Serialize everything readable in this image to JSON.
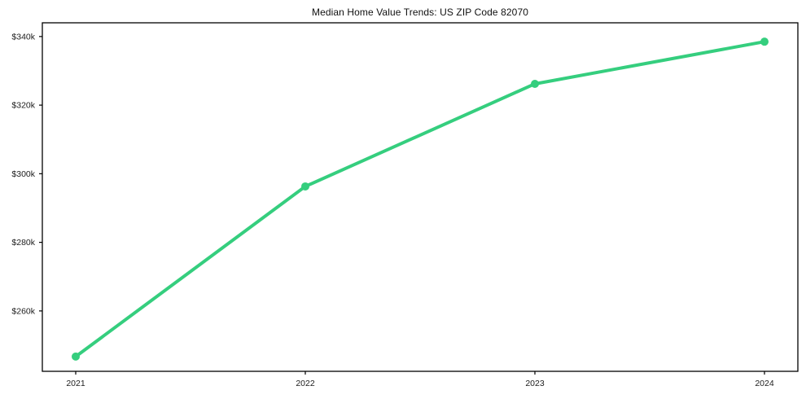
{
  "chart_data": {
    "type": "line",
    "title": "Median Home Value Trends: US ZIP Code 82070",
    "categories": [
      "2021",
      "2022",
      "2023",
      "2024"
    ],
    "series": [
      {
        "name": "Median Home Value",
        "values": [
          246700,
          296300,
          326200,
          338500
        ]
      }
    ],
    "xlabel": "",
    "ylabel": "",
    "ylim": [
      242400,
      344000
    ],
    "y_ticks": [
      {
        "value": 340000,
        "label": "$340k"
      },
      {
        "value": 320000,
        "label": "$320k"
      },
      {
        "value": 300000,
        "label": "$300k"
      },
      {
        "value": 280000,
        "label": "$280k"
      },
      {
        "value": 260000,
        "label": "$260k"
      }
    ],
    "grid": false,
    "legend_position": "none",
    "line_color": "#35ce7e",
    "marker": "circle",
    "axis_color": "#000000"
  }
}
